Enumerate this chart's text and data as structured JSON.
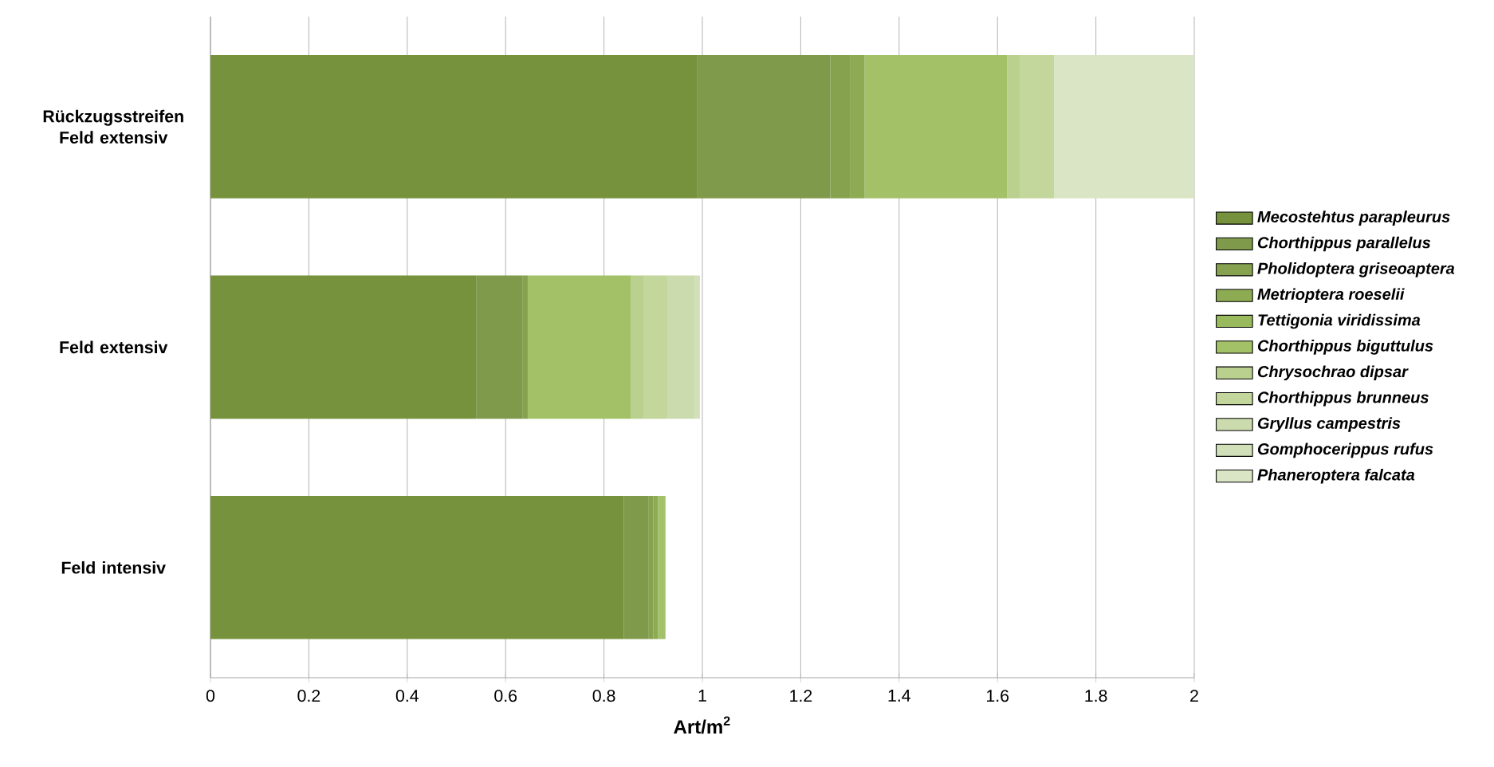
{
  "chart_data": {
    "type": "bar",
    "orientation": "horizontal",
    "stacked": true,
    "xlabel": "Art/m$^{2}$",
    "categories": [
      "Rückzugsstreifen Feld extensiv",
      "Feld extensiv",
      "Feld intensiv"
    ],
    "series": [
      {
        "name": "Mecostehtus parapleurus",
        "color": "#76923c",
        "values": [
          0.99,
          0.54,
          0.84
        ]
      },
      {
        "name": "Chorthippus parallelus",
        "color": "#7f9a4a",
        "values": [
          0.27,
          0.095,
          0.05
        ]
      },
      {
        "name": "Pholidoptera griseoaptera",
        "color": "#86a24f",
        "values": [
          0.04,
          0.01,
          0.01
        ]
      },
      {
        "name": "Metrioptera roeselii",
        "color": "#8cab53",
        "values": [
          0.03,
          0,
          0.01
        ]
      },
      {
        "name": "Tettigonia viridissima",
        "color": "#98b95c",
        "values": [
          0,
          0,
          0
        ]
      },
      {
        "name": "Chorthippus biguttulus",
        "color": "#a3c167",
        "values": [
          0.29,
          0.21,
          0.015
        ]
      },
      {
        "name": "Chrysochrao dipsar",
        "color": "#b9d08f",
        "values": [
          0.025,
          0.025,
          0
        ]
      },
      {
        "name": "Chorthippus brunneus",
        "color": "#c3d69b",
        "values": [
          0.07,
          0.05,
          0
        ]
      },
      {
        "name": "Gryllus campestris",
        "color": "#cbdbae",
        "values": [
          0,
          0.055,
          0
        ]
      },
      {
        "name": "Gomphocerippus rufus",
        "color": "#d2e0b9",
        "values": [
          0,
          0.01,
          0
        ]
      },
      {
        "name": "Phaneroptera falcata",
        "color": "#d9e5c4",
        "values": [
          0.285,
          0,
          0
        ]
      }
    ],
    "xlim": [
      0,
      2
    ],
    "xticks": [
      0,
      0.2,
      0.4,
      0.6,
      0.8,
      1,
      1.2,
      1.4,
      1.6,
      1.8,
      2
    ],
    "grid": "x",
    "legend": "right"
  }
}
